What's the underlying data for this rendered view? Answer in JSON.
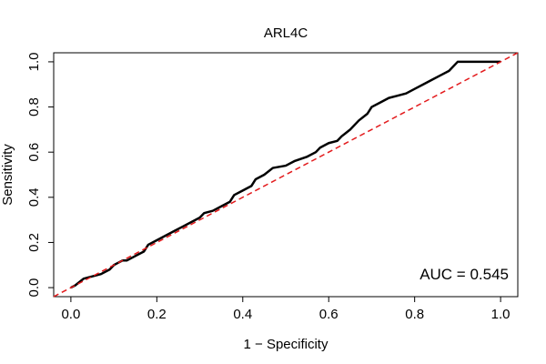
{
  "chart_data": {
    "type": "line",
    "title": "ARL4C",
    "xlabel": "1 − Specificity",
    "ylabel": "Sensitivity",
    "xlim": [
      -0.04,
      1.04
    ],
    "ylim": [
      -0.04,
      1.04
    ],
    "x_ticks": [
      0.0,
      0.2,
      0.4,
      0.6,
      0.8,
      1.0
    ],
    "x_tick_labels": [
      "0.0",
      "0.2",
      "0.4",
      "0.6",
      "0.8",
      "1.0"
    ],
    "y_ticks": [
      0.0,
      0.2,
      0.4,
      0.6,
      0.8,
      1.0
    ],
    "y_tick_labels": [
      "0.0",
      "0.2",
      "0.4",
      "0.6",
      "0.8",
      "1.0"
    ],
    "grid": false,
    "annotation": "AUC = 0.545",
    "series": [
      {
        "line_style": "solid",
        "color": "#000000",
        "x": [
          0.0,
          0.01,
          0.03,
          0.05,
          0.07,
          0.09,
          0.1,
          0.12,
          0.13,
          0.15,
          0.17,
          0.18,
          0.2,
          0.22,
          0.24,
          0.26,
          0.28,
          0.3,
          0.31,
          0.33,
          0.35,
          0.37,
          0.38,
          0.4,
          0.42,
          0.43,
          0.45,
          0.47,
          0.5,
          0.52,
          0.55,
          0.57,
          0.58,
          0.6,
          0.62,
          0.63,
          0.65,
          0.67,
          0.69,
          0.7,
          0.72,
          0.74,
          0.76,
          0.78,
          0.8,
          0.82,
          0.84,
          0.86,
          0.88,
          0.9,
          0.95,
          1.0
        ],
        "y": [
          0.0,
          0.01,
          0.04,
          0.05,
          0.06,
          0.08,
          0.1,
          0.12,
          0.12,
          0.14,
          0.16,
          0.19,
          0.21,
          0.23,
          0.25,
          0.27,
          0.29,
          0.31,
          0.33,
          0.34,
          0.36,
          0.38,
          0.41,
          0.43,
          0.45,
          0.48,
          0.5,
          0.53,
          0.54,
          0.56,
          0.58,
          0.6,
          0.62,
          0.64,
          0.65,
          0.67,
          0.7,
          0.74,
          0.77,
          0.8,
          0.82,
          0.84,
          0.85,
          0.86,
          0.88,
          0.9,
          0.92,
          0.94,
          0.96,
          1.0,
          1.0,
          1.0
        ]
      },
      {
        "line_style": "dashed",
        "color": "#e31a1c",
        "x": [
          -0.04,
          1.04
        ],
        "y": [
          -0.04,
          1.04
        ]
      }
    ]
  }
}
